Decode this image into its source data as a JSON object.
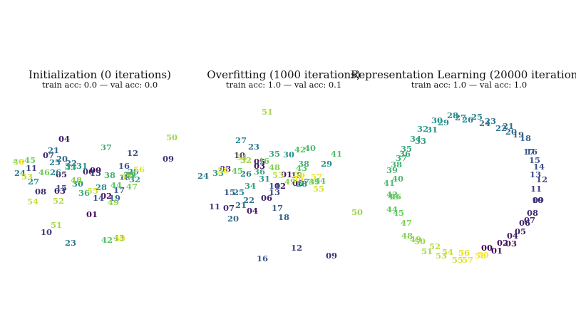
{
  "chart_data": [
    {
      "type": "scatter",
      "title": "Initialization (0 iterations)",
      "subtitle": "train acc: 0.0 — val acc: 0.0",
      "points": [
        {
          "label": "00",
          "x": 134.0,
          "y": -24.0
        },
        {
          "label": "01",
          "x": 129.0,
          "y": -86.0
        },
        {
          "label": "02",
          "x": 149.0,
          "y": -60.0
        },
        {
          "label": "03",
          "x": 84.0,
          "y": -53.0
        },
        {
          "label": "04",
          "x": 90.0,
          "y": 20.0
        },
        {
          "label": "05",
          "x": 86.0,
          "y": -30.0
        },
        {
          "label": "06",
          "x": 124.0,
          "y": -26.0
        },
        {
          "label": "07",
          "x": 68.0,
          "y": -3.0
        },
        {
          "label": "08",
          "x": 57.0,
          "y": -54.0
        },
        {
          "label": "09",
          "x": 236.0,
          "y": -8.0
        },
        {
          "label": "10",
          "x": 65.0,
          "y": -111.0
        },
        {
          "label": "11",
          "x": 44.0,
          "y": -21.0
        },
        {
          "label": "12",
          "x": 186.0,
          "y": 0.0
        },
        {
          "label": "13",
          "x": 134.0,
          "y": -28.0
        },
        {
          "label": "14",
          "x": 138.0,
          "y": -63.0
        },
        {
          "label": "15",
          "x": 86.0,
          "y": -49.0
        },
        {
          "label": "16",
          "x": 174.0,
          "y": -18.0
        },
        {
          "label": "17",
          "x": 167.0,
          "y": -52.0
        },
        {
          "label": "18",
          "x": 175.0,
          "y": -34.0
        },
        {
          "label": "19",
          "x": 161.0,
          "y": -63.0
        },
        {
          "label": "20",
          "x": 87.0,
          "y": -8.0
        },
        {
          "label": "21",
          "x": 75.0,
          "y": 4.0
        },
        {
          "label": "22",
          "x": 100.0,
          "y": -14.0
        },
        {
          "label": "23",
          "x": 99.0,
          "y": -126.0
        },
        {
          "label": "24",
          "x": 28.0,
          "y": -28.0
        },
        {
          "label": "25",
          "x": 77.0,
          "y": -13.0
        },
        {
          "label": "26",
          "x": 78.0,
          "y": -27.0
        },
        {
          "label": "27",
          "x": 47.0,
          "y": -40.0
        },
        {
          "label": "28",
          "x": 142.0,
          "y": -48.0
        },
        {
          "label": "29",
          "x": 187.0,
          "y": -26.0
        },
        {
          "label": "30",
          "x": 109.0,
          "y": -43.0
        },
        {
          "label": "31",
          "x": 115.0,
          "y": -18.0
        },
        {
          "label": "32",
          "x": 189.0,
          "y": -37.0
        },
        {
          "label": "33",
          "x": 99.0,
          "y": -20.0
        },
        {
          "label": "34",
          "x": 99.0,
          "y": -18.0
        },
        {
          "label": "35",
          "x": 181.0,
          "y": -31.0
        },
        {
          "label": "36",
          "x": 118.0,
          "y": -56.0
        },
        {
          "label": "37",
          "x": 149.0,
          "y": 8.0
        },
        {
          "label": "38",
          "x": 154.0,
          "y": -31.0
        },
        {
          "label": "39",
          "x": 183.0,
          "y": -30.0
        },
        {
          "label": "40",
          "x": 26.0,
          "y": -12.0
        },
        {
          "label": "41",
          "x": 182.0,
          "y": -31.0
        },
        {
          "label": "42",
          "x": 150.0,
          "y": -122.0
        },
        {
          "label": "43",
          "x": 167.0,
          "y": -119.0
        },
        {
          "label": "44",
          "x": 163.0,
          "y": -45.0
        },
        {
          "label": "45",
          "x": 42.0,
          "y": -10.0
        },
        {
          "label": "46",
          "x": 62.0,
          "y": -27.0
        },
        {
          "label": "47",
          "x": 185.0,
          "y": -47.0
        },
        {
          "label": "48",
          "x": 107.0,
          "y": -38.0
        },
        {
          "label": "49",
          "x": 159.0,
          "y": -69.0
        },
        {
          "label": "50",
          "x": 241.0,
          "y": 22.0
        },
        {
          "label": "51",
          "x": 79.0,
          "y": -101.0
        },
        {
          "label": "52",
          "x": 82.0,
          "y": -67.0
        },
        {
          "label": "53",
          "x": 38.0,
          "y": -33.0
        },
        {
          "label": "54",
          "x": 46.0,
          "y": -68.0
        },
        {
          "label": "55",
          "x": 130.0,
          "y": -53.0
        },
        {
          "label": "56",
          "x": 195.0,
          "y": -23.0
        },
        {
          "label": "57",
          "x": 177.0,
          "y": -34.0
        },
        {
          "label": "58",
          "x": 26.0,
          "y": -12.0
        },
        {
          "label": "59",
          "x": 168.0,
          "y": -120.0
        }
      ]
    },
    {
      "type": "scatter",
      "title": "Overfitting (1000 iterations)",
      "subtitle": "train acc: 1.0 — val acc: 0.1",
      "points": [
        {
          "label": "00",
          "x": 418.0,
          "y": -42.0
        },
        {
          "label": "01",
          "x": 402.0,
          "y": -30.0
        },
        {
          "label": "02",
          "x": 393.0,
          "y": -46.0
        },
        {
          "label": "03",
          "x": 364.0,
          "y": -18.0
        },
        {
          "label": "04",
          "x": 354.0,
          "y": -81.0
        },
        {
          "label": "05",
          "x": 364.0,
          "y": -12.0
        },
        {
          "label": "06",
          "x": 374.0,
          "y": -63.0
        },
        {
          "label": "07",
          "x": 321.0,
          "y": -77.0
        },
        {
          "label": "08",
          "x": 316.0,
          "y": -22.0
        },
        {
          "label": "09",
          "x": 465.0,
          "y": -144.0
        },
        {
          "label": "10",
          "x": 336.0,
          "y": -3.0
        },
        {
          "label": "11",
          "x": 301.0,
          "y": -75.0
        },
        {
          "label": "12",
          "x": 416.0,
          "y": -133.0
        },
        {
          "label": "13",
          "x": 385.0,
          "y": -55.0
        },
        {
          "label": "14",
          "x": 385.0,
          "y": -46.0
        },
        {
          "label": "15",
          "x": 322.0,
          "y": -55.0
        },
        {
          "label": "16",
          "x": 368.0,
          "y": -148.0
        },
        {
          "label": "17",
          "x": 389.0,
          "y": -77.0
        },
        {
          "label": "18",
          "x": 398.0,
          "y": -90.0
        },
        {
          "label": "19",
          "x": 416.0,
          "y": -31.0
        },
        {
          "label": "20",
          "x": 327.0,
          "y": -92.0
        },
        {
          "label": "21",
          "x": 338.0,
          "y": -73.0
        },
        {
          "label": "22",
          "x": 349.0,
          "y": -66.0
        },
        {
          "label": "23",
          "x": 356.0,
          "y": 9.0
        },
        {
          "label": "24",
          "x": 285.0,
          "y": -32.0
        },
        {
          "label": "25",
          "x": 335.0,
          "y": -55.0
        },
        {
          "label": "26",
          "x": 345.0,
          "y": -29.0
        },
        {
          "label": "27",
          "x": 338.0,
          "y": 18.0
        },
        {
          "label": "28",
          "x": 423.0,
          "y": -43.0
        },
        {
          "label": "29",
          "x": 458.0,
          "y": -15.0
        },
        {
          "label": "30",
          "x": 405.0,
          "y": -2.0
        },
        {
          "label": "31",
          "x": 371.0,
          "y": -36.0
        },
        {
          "label": "32",
          "x": 345.0,
          "y": -10.0
        },
        {
          "label": "33",
          "x": 306.0,
          "y": -28.0
        },
        {
          "label": "34",
          "x": 351.0,
          "y": -46.0
        },
        {
          "label": "35",
          "x": 385.0,
          "y": -1.0
        },
        {
          "label": "36",
          "x": 364.0,
          "y": -26.0
        },
        {
          "label": "37",
          "x": 426.0,
          "y": -40.0
        },
        {
          "label": "38",
          "x": 426.0,
          "y": -15.0
        },
        {
          "label": "39",
          "x": 441.0,
          "y": -40.0
        },
        {
          "label": "40",
          "x": 435.0,
          "y": 7.0
        },
        {
          "label": "41",
          "x": 472.0,
          "y": -1.0
        },
        {
          "label": "42",
          "x": 421.0,
          "y": 5.0
        },
        {
          "label": "43",
          "x": 423.0,
          "y": -21.0
        },
        {
          "label": "44",
          "x": 449.0,
          "y": -39.0
        },
        {
          "label": "45",
          "x": 333.0,
          "y": -25.0
        },
        {
          "label": "46",
          "x": 370.0,
          "y": -11.0
        },
        {
          "label": "47",
          "x": 441.0,
          "y": -40.0
        },
        {
          "label": "48",
          "x": 385.0,
          "y": -20.0
        },
        {
          "label": "49",
          "x": 407.0,
          "y": -40.0
        },
        {
          "label": "50",
          "x": 501.0,
          "y": -83.0
        },
        {
          "label": "51",
          "x": 375.0,
          "y": 58.0
        },
        {
          "label": "52",
          "x": 345.0,
          "y": -10.0
        },
        {
          "label": "53",
          "x": 390.0,
          "y": -31.0
        },
        {
          "label": "54",
          "x": 339.0,
          "y": -6.0
        },
        {
          "label": "55",
          "x": 447.0,
          "y": -50.0
        },
        {
          "label": "56",
          "x": 420.0,
          "y": -30.0
        },
        {
          "label": "57",
          "x": 444.0,
          "y": -33.0
        },
        {
          "label": "58",
          "x": 313.0,
          "y": -24.0
        },
        {
          "label": "59",
          "x": 418.0,
          "y": -36.0
        }
      ]
    },
    {
      "type": "scatter",
      "title": "Representation Learning (20000 iterations)",
      "subtitle": "train acc: 1.0 — val acc: 1.0",
      "points": [
        {
          "label": "00",
          "x": 683.0,
          "y": -133.0
        },
        {
          "label": "01",
          "x": 697.0,
          "y": -137.0
        },
        {
          "label": "02",
          "x": 705.0,
          "y": -126.0
        },
        {
          "label": "03",
          "x": 717.0,
          "y": -127.0
        },
        {
          "label": "04",
          "x": 719.0,
          "y": -116.0
        },
        {
          "label": "05",
          "x": 730.0,
          "y": -110.0
        },
        {
          "label": "06",
          "x": 736.0,
          "y": -98.0
        },
        {
          "label": "07",
          "x": 743.0,
          "y": -94.0
        },
        {
          "label": "08",
          "x": 747.0,
          "y": -84.0
        },
        {
          "label": "09",
          "x": 755.0,
          "y": -66.0
        },
        {
          "label": "10",
          "x": 754.0,
          "y": -66.0
        },
        {
          "label": "11",
          "x": 752.0,
          "y": -50.0
        },
        {
          "label": "12",
          "x": 760.0,
          "y": -37.0
        },
        {
          "label": "13",
          "x": 751.0,
          "y": -30.0
        },
        {
          "label": "14",
          "x": 756.0,
          "y": -19.0
        },
        {
          "label": "15",
          "x": 750.0,
          "y": -10.0
        },
        {
          "label": "16",
          "x": 746.0,
          "y": 2.0
        },
        {
          "label": "17",
          "x": 742.0,
          "y": 2.0
        },
        {
          "label": "18",
          "x": 737.0,
          "y": 21.0
        },
        {
          "label": "19",
          "x": 727.0,
          "y": 26.0
        },
        {
          "label": "20",
          "x": 717.0,
          "y": 30.0
        },
        {
          "label": "21",
          "x": 713.0,
          "y": 38.0
        },
        {
          "label": "22",
          "x": 703.0,
          "y": 35.0
        },
        {
          "label": "23",
          "x": 688.0,
          "y": 45.0
        },
        {
          "label": "24",
          "x": 680.0,
          "y": 42.0
        },
        {
          "label": "25",
          "x": 669.0,
          "y": 51.0
        },
        {
          "label": "26",
          "x": 656.0,
          "y": 47.0
        },
        {
          "label": "27",
          "x": 646.0,
          "y": 50.0
        },
        {
          "label": "28",
          "x": 635.0,
          "y": 53.0
        },
        {
          "label": "29",
          "x": 622.0,
          "y": 43.0
        },
        {
          "label": "30",
          "x": 613.0,
          "y": 46.0
        },
        {
          "label": "31",
          "x": 606.0,
          "y": 33.0
        },
        {
          "label": "32",
          "x": 593.0,
          "y": 34.0
        },
        {
          "label": "33",
          "x": 590.0,
          "y": 17.0
        },
        {
          "label": "34",
          "x": 583.0,
          "y": 20.0
        },
        {
          "label": "35",
          "x": 570.0,
          "y": 6.0
        },
        {
          "label": "36",
          "x": 568.0,
          "y": -1.0
        },
        {
          "label": "37",
          "x": 563.0,
          "y": -7.0
        },
        {
          "label": "38",
          "x": 556.0,
          "y": -16.0
        },
        {
          "label": "39",
          "x": 550.0,
          "y": -24.0
        },
        {
          "label": "40",
          "x": 558.0,
          "y": -36.0
        },
        {
          "label": "41",
          "x": 546.0,
          "y": -42.0
        },
        {
          "label": "42",
          "x": 550.0,
          "y": -58.0
        },
        {
          "label": "43",
          "x": 552.0,
          "y": -61.0
        },
        {
          "label": "44",
          "x": 550.0,
          "y": -79.0
        },
        {
          "label": "45",
          "x": 559.0,
          "y": -84.0
        },
        {
          "label": "46",
          "x": 555.0,
          "y": -61.0
        },
        {
          "label": "47",
          "x": 570.0,
          "y": -98.0
        },
        {
          "label": "48",
          "x": 571.0,
          "y": -116.0
        },
        {
          "label": "49",
          "x": 583.0,
          "y": -121.0
        },
        {
          "label": "50",
          "x": 589.0,
          "y": -124.0
        },
        {
          "label": "51",
          "x": 599.0,
          "y": -138.0
        },
        {
          "label": "52",
          "x": 610.0,
          "y": -131.0
        },
        {
          "label": "53",
          "x": 619.0,
          "y": -144.0
        },
        {
          "label": "54",
          "x": 628.0,
          "y": -139.0
        },
        {
          "label": "55",
          "x": 642.0,
          "y": -150.0
        },
        {
          "label": "56",
          "x": 651.0,
          "y": -140.0
        },
        {
          "label": "57",
          "x": 656.0,
          "y": -150.0
        },
        {
          "label": "58",
          "x": 674.0,
          "y": -144.0
        },
        {
          "label": "59",
          "x": 678.0,
          "y": -143.0
        }
      ]
    }
  ]
}
